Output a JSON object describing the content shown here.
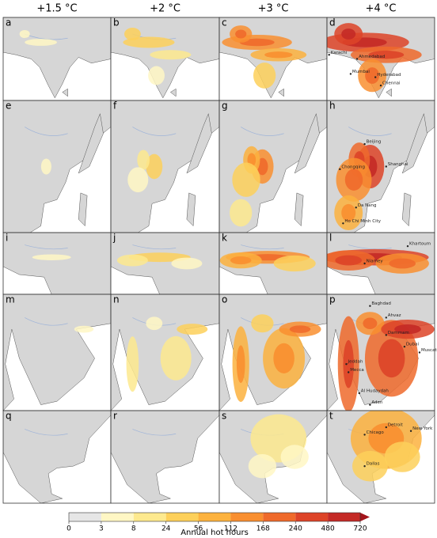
{
  "columns": [
    "+1.5 °C",
    "+2 °C",
    "+3 °C",
    "+4 °C"
  ],
  "panels": [
    {
      "letter": "a"
    },
    {
      "letter": "b"
    },
    {
      "letter": "c"
    },
    {
      "letter": "d",
      "cities": [
        "Karachi",
        "Ahmedabad",
        "Mumbai",
        "Hyderabad",
        "Chennai"
      ]
    },
    {
      "letter": "e"
    },
    {
      "letter": "f"
    },
    {
      "letter": "g"
    },
    {
      "letter": "h",
      "cities": [
        "Beijing",
        "Chongqing",
        "Shanghai",
        "Da Nang",
        "Ho Chi Minh City"
      ]
    },
    {
      "letter": "i"
    },
    {
      "letter": "j"
    },
    {
      "letter": "k"
    },
    {
      "letter": "l",
      "cities": [
        "Khartoum",
        "Niamey"
      ]
    },
    {
      "letter": "m"
    },
    {
      "letter": "n"
    },
    {
      "letter": "o"
    },
    {
      "letter": "p",
      "cities": [
        "Baghdad",
        "Ahvaz",
        "Dammam",
        "Dubai",
        "Muscat",
        "Jeddah",
        "Mecca",
        "Al Hudaydah",
        "Aden"
      ]
    },
    {
      "letter": "q"
    },
    {
      "letter": "r"
    },
    {
      "letter": "s"
    },
    {
      "letter": "t",
      "cities": [
        "Chicago",
        "Detroit",
        "New York",
        "Dallas"
      ]
    }
  ],
  "colorbar": {
    "label": "Annual hot hours",
    "ticks": [
      0,
      3,
      8,
      24,
      56,
      112,
      168,
      240,
      480,
      720
    ],
    "colors": [
      "#e6e6e6",
      "#fff7c4",
      "#fde98e",
      "#fdd05a",
      "#fcb23e",
      "#f98f30",
      "#ef6a2b",
      "#dd4428",
      "#c42a26",
      "#a3141b"
    ]
  }
}
